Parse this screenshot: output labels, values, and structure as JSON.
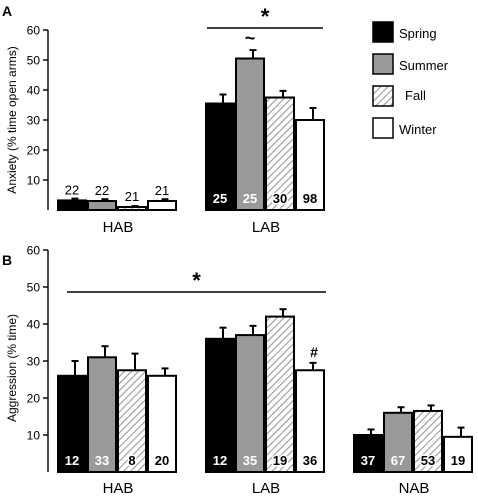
{
  "chart_data": [
    {
      "panel_label": "A",
      "type": "bar",
      "ylabel": "Anxiety (% time open arms)",
      "ylim": [
        0,
        60
      ],
      "yticks": [
        10,
        20,
        30,
        40,
        50,
        60
      ],
      "groups": [
        "HAB",
        "LAB"
      ],
      "series": [
        {
          "name": "Spring",
          "values": [
            3.2,
            35.5
          ],
          "errors": [
            0.6,
            3.0
          ],
          "n": [
            "22",
            "25"
          ]
        },
        {
          "name": "Summer",
          "values": [
            3.0,
            50.5
          ],
          "errors": [
            0.6,
            2.8
          ],
          "n": [
            "22",
            "25"
          ]
        },
        {
          "name": "Fall",
          "values": [
            1.0,
            37.5
          ],
          "errors": [
            0.3,
            2.2
          ],
          "n": [
            "21",
            "30"
          ]
        },
        {
          "name": "Winter",
          "values": [
            3.0,
            30.0
          ],
          "errors": [
            0.6,
            4.0
          ],
          "n": [
            "21",
            "98"
          ]
        }
      ],
      "annotations": [
        {
          "text": "*",
          "group": 1,
          "type": "bracket"
        },
        {
          "text": "~",
          "group": 1,
          "series": 1
        }
      ],
      "legend": {
        "placement": "right",
        "entries": [
          "Spring",
          "Summer",
          "Fall",
          "Winter"
        ]
      }
    },
    {
      "panel_label": "B",
      "type": "bar",
      "ylabel": "Aggression (% time)",
      "ylim": [
        0,
        60
      ],
      "yticks": [
        10,
        20,
        30,
        40,
        50,
        60
      ],
      "groups": [
        "HAB",
        "LAB",
        "NAB"
      ],
      "series": [
        {
          "name": "Spring",
          "values": [
            26.0,
            36.0,
            10.0
          ],
          "errors": [
            4.0,
            3.0,
            1.5
          ],
          "n": [
            "12",
            "12",
            "37"
          ]
        },
        {
          "name": "Summer",
          "values": [
            31.0,
            37.0,
            16.0
          ],
          "errors": [
            3.0,
            2.5,
            1.5
          ],
          "n": [
            "33",
            "35",
            "67"
          ]
        },
        {
          "name": "Fall",
          "values": [
            27.5,
            42.0,
            16.5
          ],
          "errors": [
            4.5,
            2.0,
            1.5
          ],
          "n": [
            "8",
            "19",
            "53"
          ]
        },
        {
          "name": "Winter",
          "values": [
            26.0,
            27.5,
            9.5
          ],
          "errors": [
            2.0,
            2.0,
            2.5
          ],
          "n": [
            "20",
            "36",
            "19"
          ]
        }
      ],
      "annotations": [
        {
          "text": "*",
          "groups": [
            0,
            1
          ],
          "type": "bracket"
        },
        {
          "text": "#",
          "group": 1,
          "series": 3
        }
      ]
    }
  ],
  "colors": {
    "Spring": "#000000",
    "Summer": "#999999",
    "Fall": "hatched",
    "Winter": "#ffffff"
  }
}
